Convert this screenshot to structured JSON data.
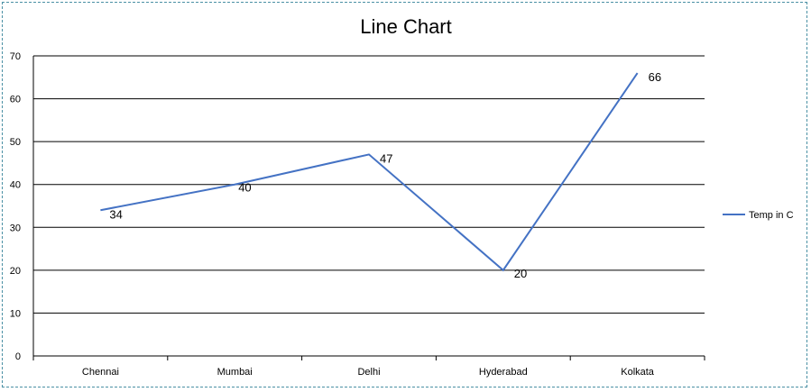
{
  "chart_data": {
    "type": "line",
    "title": "Line Chart",
    "categories": [
      "Chennai",
      "Mumbai",
      "Delhi",
      "Hyderabad",
      "Kolkata"
    ],
    "series": [
      {
        "name": "Temp in C",
        "values": [
          34,
          40,
          47,
          20,
          66
        ],
        "color": "#4472c4"
      }
    ],
    "ylim": [
      0,
      70
    ],
    "yticks": [
      0,
      10,
      20,
      30,
      40,
      50,
      60,
      70
    ],
    "grid": true,
    "legend_position": "right",
    "data_labels": true
  }
}
